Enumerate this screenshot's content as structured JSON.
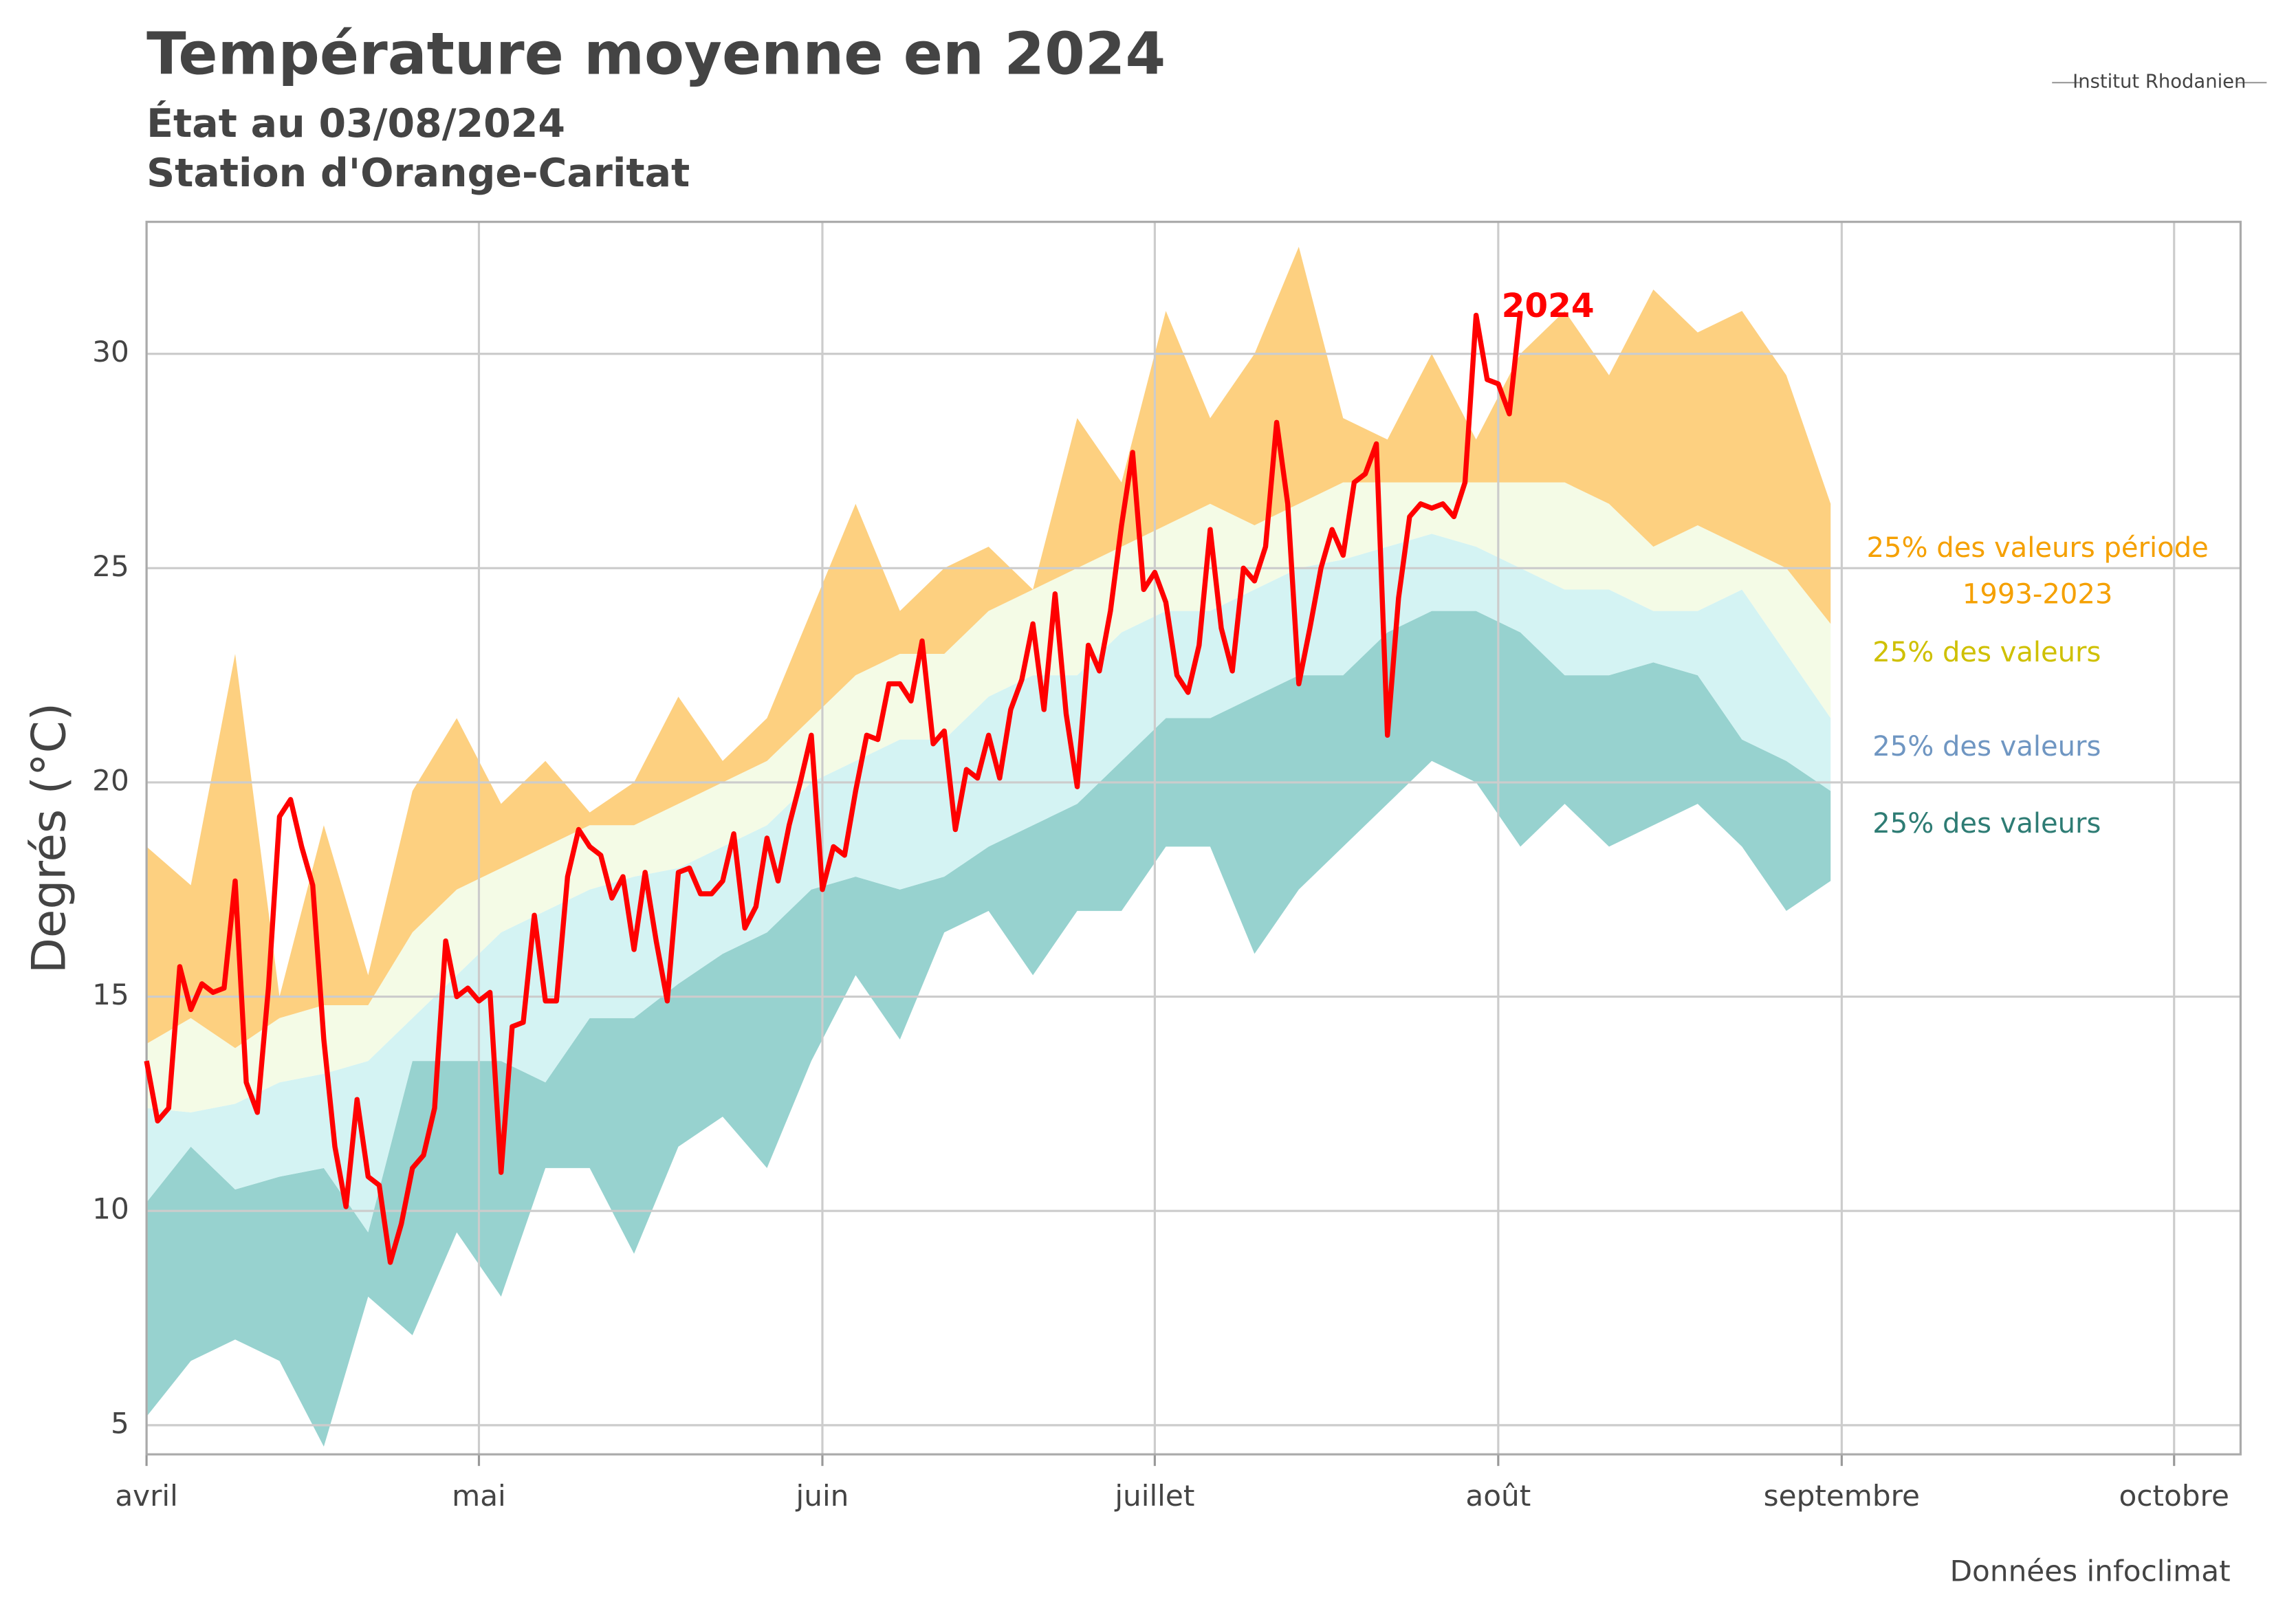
{
  "chart_data": {
    "type": "band_line",
    "title": "Température moyenne en 2024",
    "subtitles": [
      "État au 03/08/2024",
      "Station d'Orange-Caritat"
    ],
    "ylabel": "Degrés (°C)",
    "source": "Données  infoclimat",
    "logo": "Institut Rhodanien",
    "xlim": [
      0,
      189
    ],
    "xticks": [
      {
        "value": 0,
        "label": "avril"
      },
      {
        "value": 30,
        "label": "mai"
      },
      {
        "value": 61,
        "label": "juin"
      },
      {
        "value": 91,
        "label": "juillet"
      },
      {
        "value": 122,
        "label": "août"
      },
      {
        "value": 153,
        "label": "septembre"
      },
      {
        "value": 183,
        "label": "octobre"
      }
    ],
    "ylim": [
      4.32,
      33.08
    ],
    "yticks": [
      5,
      10,
      15,
      20,
      25,
      30
    ],
    "grid": true,
    "x": [
      0,
      4,
      8,
      12,
      16,
      20,
      24,
      28,
      32,
      36,
      40,
      44,
      48,
      52,
      56,
      60,
      64,
      68,
      72,
      76,
      80,
      84,
      88,
      92,
      96,
      100,
      104,
      108,
      112,
      116,
      120,
      124,
      128,
      132,
      136,
      140,
      144,
      148,
      152
    ],
    "quantiles": [
      [
        5.2,
        6.5,
        7,
        6.5,
        4.5,
        8,
        7.1,
        9.5,
        8,
        11,
        11,
        9,
        11.5,
        12.2,
        11,
        13.5,
        15.5,
        14,
        16.5,
        17,
        15.5,
        17,
        17,
        18.5,
        18.5,
        16,
        17.5,
        18.5,
        19.5,
        20.5,
        20,
        18.5,
        19.5,
        18.5,
        19,
        19.5,
        18.5,
        17,
        17.7
      ],
      [
        10.2,
        11.5,
        10.5,
        10.8,
        11,
        9.5,
        13.5,
        13.5,
        13.5,
        13,
        14.5,
        14.5,
        15.3,
        16,
        16.5,
        17.5,
        17.8,
        17.5,
        17.8,
        18.5,
        19,
        19.5,
        20.5,
        21.5,
        21.5,
        22,
        22.5,
        22.5,
        23.5,
        24,
        24,
        23.5,
        22.5,
        22.5,
        22.8,
        22.5,
        21,
        20.5,
        19.8
      ],
      [
        12.4,
        12.3,
        12.5,
        13,
        13.2,
        13.5,
        14.5,
        15.5,
        16.5,
        17,
        17.5,
        17.8,
        18,
        18.5,
        19,
        20,
        20.5,
        21,
        21,
        22,
        22.5,
        22.5,
        23.5,
        24,
        24,
        24.5,
        25,
        25.2,
        25.5,
        25.8,
        25.5,
        25,
        24.5,
        24.5,
        24,
        24,
        24.5,
        23,
        21.5
      ],
      [
        13.9,
        14.5,
        13.8,
        14.5,
        14.8,
        14.8,
        16.5,
        17.5,
        18,
        18.5,
        19,
        19,
        19.5,
        20,
        20.5,
        21.5,
        22.5,
        23,
        23,
        24,
        24.5,
        25,
        25.5,
        26,
        26.5,
        26,
        26.5,
        27,
        27,
        27,
        27,
        27,
        27,
        26.5,
        25.5,
        26,
        25.5,
        25,
        23.7
      ],
      [
        18.5,
        17.6,
        23,
        15,
        19,
        15.5,
        19.8,
        21.5,
        19.5,
        20.5,
        19.3,
        20,
        22,
        20.5,
        21.5,
        24,
        26.5,
        24,
        25,
        25.5,
        24.5,
        28.5,
        27,
        31,
        28.5,
        30,
        32.5,
        28.5,
        28,
        30,
        28,
        30,
        31,
        29.5,
        31.5,
        30.5,
        31,
        29.5,
        26.5
      ]
    ],
    "bands": [
      {
        "name": "25% des valeurs",
        "color": "#97d2cf",
        "text_color": "#2e7c74"
      },
      {
        "name": "25% des valeurs",
        "color": "#d4f3f3",
        "text_color": "#6f96c2"
      },
      {
        "name": "25% des valeurs",
        "color": "#f4fbe6",
        "text_color": "#cfc000"
      },
      {
        "name": "25% des valeurs période 1993-2023",
        "color": "#fdd080",
        "text_color": "#f5a000"
      }
    ],
    "series": [
      {
        "name": "2024",
        "color": "#ff0000",
        "x": [
          0,
          1,
          2,
          3,
          4,
          5,
          6,
          7,
          8,
          9,
          10,
          11,
          12,
          13,
          14,
          15,
          16,
          17,
          18,
          19,
          20,
          21,
          22,
          23,
          24,
          25,
          26,
          27,
          28,
          29,
          30,
          31,
          32,
          33,
          34,
          35,
          36,
          37,
          38,
          39,
          40,
          41,
          42,
          43,
          44,
          45,
          46,
          47,
          48,
          49,
          50,
          51,
          52,
          53,
          54,
          55,
          56,
          57,
          58,
          59,
          60,
          61,
          62,
          63,
          64,
          65,
          66,
          67,
          68,
          69,
          70,
          71,
          72,
          73,
          74,
          75,
          76,
          77,
          78,
          79,
          80,
          81,
          82,
          83,
          84,
          85,
          86,
          87,
          88,
          89,
          90,
          91,
          92,
          93,
          94,
          95,
          96,
          97,
          98,
          99,
          100,
          101,
          102,
          103,
          104,
          105,
          106,
          107,
          108,
          109,
          110,
          111,
          112,
          113,
          114,
          115,
          116,
          117,
          118,
          119,
          120,
          121,
          122,
          123,
          124
        ],
        "values": [
          13.5,
          12.1,
          12.4,
          15.7,
          14.7,
          15.3,
          15.1,
          15.2,
          17.7,
          13,
          12.3,
          15.2,
          19.2,
          19.6,
          18.5,
          17.6,
          14,
          11.5,
          10.1,
          12.6,
          10.8,
          10.6,
          8.8,
          9.7,
          11,
          11.3,
          12.4,
          16.3,
          15,
          15.2,
          14.9,
          15.1,
          10.9,
          14.3,
          14.4,
          16.9,
          14.9,
          14.9,
          17.8,
          18.9,
          18.5,
          18.3,
          17.3,
          17.8,
          16.1,
          17.9,
          16.3,
          14.9,
          17.9,
          18,
          17.4,
          17.4,
          17.7,
          18.8,
          16.6,
          17.1,
          18.7,
          17.7,
          19,
          20,
          21.1,
          17.5,
          18.5,
          18.3,
          19.8,
          21.1,
          21,
          22.3,
          22.3,
          21.9,
          23.3,
          20.9,
          21.2,
          18.9,
          20.3,
          20.1,
          21.1,
          20.1,
          21.7,
          22.4,
          23.7,
          21.7,
          24.4,
          21.6,
          19.9,
          23.2,
          22.6,
          24,
          26,
          27.7,
          24.5,
          24.9,
          24.2,
          22.5,
          22.1,
          23.2,
          25.9,
          23.6,
          22.6,
          25,
          24.7,
          25.5,
          28.4,
          26.5,
          22.3,
          23.6,
          25,
          25.9,
          25.3,
          27,
          27.2,
          27.9,
          21.1,
          24.3,
          26.2,
          26.5,
          26.4,
          26.5,
          26.2,
          27,
          30.9,
          29.4,
          29.3,
          28.6,
          31
        ]
      }
    ]
  }
}
